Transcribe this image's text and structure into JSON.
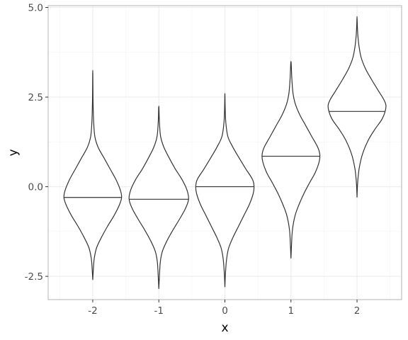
{
  "chart_data": {
    "type": "violin",
    "title": "",
    "xlabel": "x",
    "ylabel": "y",
    "categories": [
      "-2",
      "-1",
      "0",
      "1",
      "2"
    ],
    "ylim": [
      -3.15,
      5.05
    ],
    "y_ticks": [
      -2.5,
      0.0,
      2.5,
      5.0
    ],
    "y_tick_labels": [
      "-2.5",
      "0.0",
      "2.5",
      "5.0"
    ],
    "grid": true,
    "legend": "none",
    "series": [
      {
        "category": "-2",
        "median": -0.3,
        "min": -2.6,
        "max": 3.25,
        "profile": [
          [
            -2.6,
            0.0
          ],
          [
            -2.3,
            0.02
          ],
          [
            -2.0,
            0.05
          ],
          [
            -1.7,
            0.13
          ],
          [
            -1.4,
            0.3
          ],
          [
            -1.1,
            0.5
          ],
          [
            -0.8,
            0.72
          ],
          [
            -0.5,
            0.9
          ],
          [
            -0.3,
            0.97
          ],
          [
            -0.1,
            0.93
          ],
          [
            0.2,
            0.78
          ],
          [
            0.5,
            0.58
          ],
          [
            0.8,
            0.38
          ],
          [
            1.1,
            0.18
          ],
          [
            1.4,
            0.07
          ],
          [
            1.8,
            0.03
          ],
          [
            2.4,
            0.01
          ],
          [
            3.25,
            0.0
          ]
        ]
      },
      {
        "category": "-1",
        "median": -0.35,
        "min": -2.85,
        "max": 2.25,
        "profile": [
          [
            -2.85,
            0.0
          ],
          [
            -2.5,
            0.02
          ],
          [
            -2.1,
            0.05
          ],
          [
            -1.8,
            0.12
          ],
          [
            -1.5,
            0.28
          ],
          [
            -1.2,
            0.48
          ],
          [
            -0.9,
            0.7
          ],
          [
            -0.6,
            0.9
          ],
          [
            -0.35,
            1.0
          ],
          [
            -0.1,
            0.95
          ],
          [
            0.2,
            0.78
          ],
          [
            0.5,
            0.55
          ],
          [
            0.8,
            0.35
          ],
          [
            1.1,
            0.17
          ],
          [
            1.4,
            0.06
          ],
          [
            1.8,
            0.02
          ],
          [
            2.25,
            0.0
          ]
        ]
      },
      {
        "category": "0",
        "median": 0.0,
        "min": -2.8,
        "max": 2.6,
        "profile": [
          [
            -2.8,
            0.0
          ],
          [
            -2.4,
            0.02
          ],
          [
            -2.0,
            0.06
          ],
          [
            -1.7,
            0.13
          ],
          [
            -1.4,
            0.28
          ],
          [
            -1.1,
            0.46
          ],
          [
            -0.8,
            0.64
          ],
          [
            -0.5,
            0.82
          ],
          [
            -0.2,
            0.95
          ],
          [
            0.0,
            0.98
          ],
          [
            0.2,
            0.93
          ],
          [
            0.5,
            0.7
          ],
          [
            0.8,
            0.48
          ],
          [
            1.1,
            0.27
          ],
          [
            1.4,
            0.1
          ],
          [
            1.8,
            0.03
          ],
          [
            2.2,
            0.01
          ],
          [
            2.6,
            0.0
          ]
        ]
      },
      {
        "category": "1",
        "median": 0.85,
        "min": -2.0,
        "max": 3.5,
        "profile": [
          [
            -2.0,
            0.0
          ],
          [
            -1.6,
            0.02
          ],
          [
            -1.2,
            0.05
          ],
          [
            -0.8,
            0.14
          ],
          [
            -0.5,
            0.27
          ],
          [
            -0.2,
            0.43
          ],
          [
            0.1,
            0.62
          ],
          [
            0.4,
            0.82
          ],
          [
            0.7,
            0.95
          ],
          [
            0.9,
            0.97
          ],
          [
            1.1,
            0.9
          ],
          [
            1.4,
            0.7
          ],
          [
            1.7,
            0.5
          ],
          [
            2.0,
            0.3
          ],
          [
            2.3,
            0.15
          ],
          [
            2.6,
            0.07
          ],
          [
            3.0,
            0.03
          ],
          [
            3.5,
            0.0
          ]
        ]
      },
      {
        "category": "2",
        "median": 2.1,
        "min": -0.3,
        "max": 4.75,
        "profile": [
          [
            -0.3,
            0.0
          ],
          [
            0.1,
            0.02
          ],
          [
            0.5,
            0.07
          ],
          [
            0.9,
            0.18
          ],
          [
            1.3,
            0.38
          ],
          [
            1.6,
            0.6
          ],
          [
            1.9,
            0.85
          ],
          [
            2.2,
            0.97
          ],
          [
            2.4,
            0.92
          ],
          [
            2.7,
            0.7
          ],
          [
            3.0,
            0.48
          ],
          [
            3.3,
            0.28
          ],
          [
            3.6,
            0.14
          ],
          [
            3.9,
            0.07
          ],
          [
            4.2,
            0.03
          ],
          [
            4.5,
            0.01
          ],
          [
            4.75,
            0.0
          ]
        ]
      }
    ]
  }
}
